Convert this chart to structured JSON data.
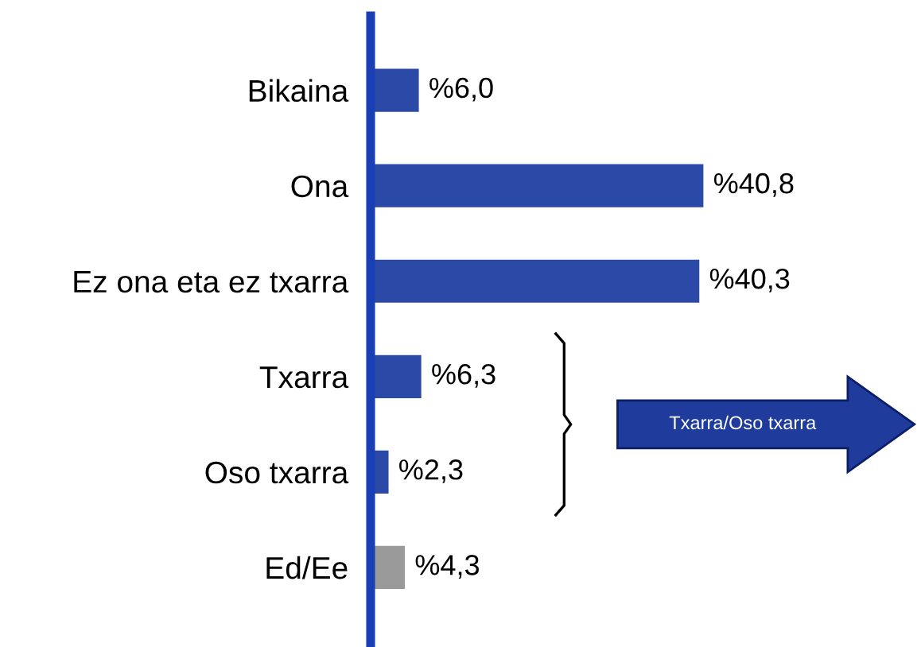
{
  "chart_data": {
    "type": "bar",
    "orientation": "horizontal",
    "categories": [
      "Bikaina",
      "Ona",
      "Ez ona eta ez txarra",
      "Txarra",
      "Oso txarra",
      "Ed/Ee"
    ],
    "values": [
      6.0,
      40.8,
      40.3,
      6.3,
      2.3,
      4.3
    ],
    "colors": [
      "#2b4aa8",
      "#2b4aa8",
      "#2b4aa8",
      "#2b4aa8",
      "#2b4aa8",
      "#9a9a9a"
    ],
    "value_labels": [
      "%6,0",
      "%40,8",
      "%40,3",
      "%6,3",
      "%2,3",
      "%4,3"
    ],
    "annotations": [
      "Txarra/Oso txarra"
    ],
    "grid": false,
    "legend": false
  }
}
